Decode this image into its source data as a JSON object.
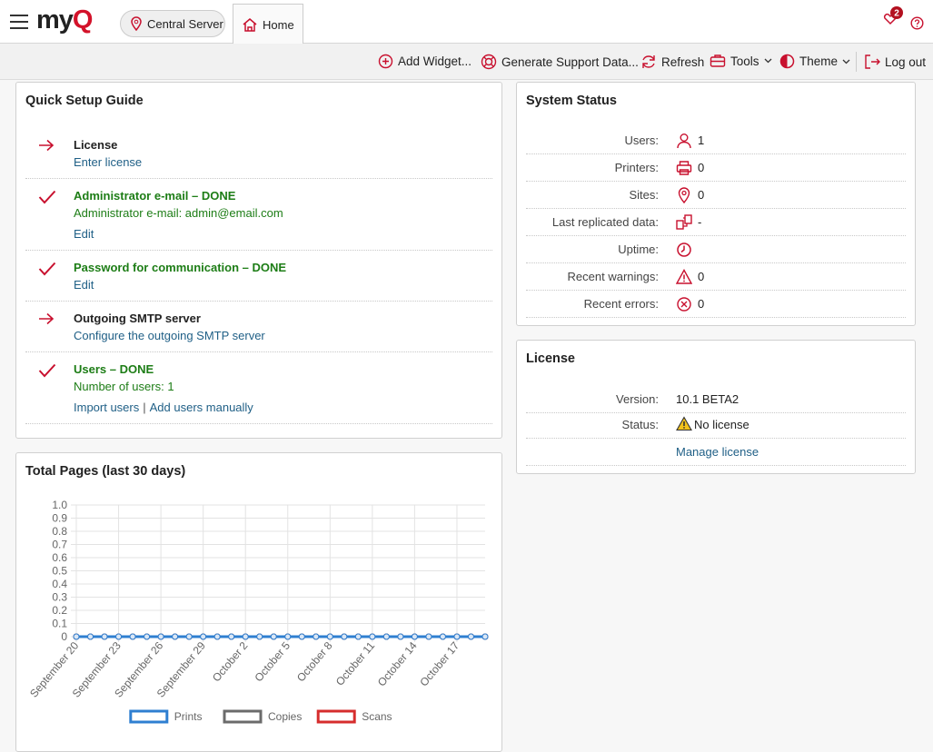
{
  "header": {
    "logo": {
      "text": "my",
      "accent": "Q"
    },
    "server": "Central Server",
    "tab": "Home",
    "notifications": 2
  },
  "toolbar": {
    "items": [
      "Add Widget...",
      "Generate Support Data...",
      "Refresh",
      "Tools",
      "Theme",
      "Log out"
    ]
  },
  "quick_setup": {
    "title": "Quick Setup Guide",
    "items": [
      {
        "title": "License",
        "done": false,
        "links": [
          "Enter license"
        ]
      },
      {
        "title": "Administrator e-mail – DONE",
        "done": true,
        "detail": "Administrator e-mail: admin@email.com",
        "links": [
          "Edit"
        ]
      },
      {
        "title": "Password for communication – DONE",
        "done": true,
        "links": [
          "Edit"
        ]
      },
      {
        "title": "Outgoing SMTP server",
        "done": false,
        "links": [
          "Configure the outgoing SMTP server"
        ]
      },
      {
        "title": "Users – DONE",
        "done": true,
        "detail": "Number of users: 1",
        "links": [
          "Import users",
          "Add users manually"
        ],
        "separator": "|"
      }
    ]
  },
  "system_status": {
    "title": "System Status",
    "rows": [
      {
        "label": "Users:",
        "value": 1
      },
      {
        "label": "Printers:",
        "value": 0
      },
      {
        "label": "Sites:",
        "value": 0
      },
      {
        "label": "Last replicated data:",
        "value": "-"
      },
      {
        "label": "Uptime:"
      },
      {
        "label": "Recent warnings:",
        "value": 0
      },
      {
        "label": "Recent errors:",
        "value": 0
      }
    ]
  },
  "license": {
    "title": "License",
    "rows": [
      {
        "label": "Version:",
        "value": "10.1 BETA2"
      },
      {
        "label": "Status:",
        "value": "No license"
      }
    ],
    "link": "Manage license"
  },
  "chart_data": {
    "type": "line",
    "title": "Total Pages (last 30 days)",
    "categories": [
      "September 20",
      null,
      null,
      "September 23",
      null,
      null,
      "September 26",
      null,
      null,
      "September 29",
      null,
      null,
      "October 2",
      null,
      null,
      "October 5",
      null,
      null,
      "October 8",
      null,
      null,
      "October 11",
      null,
      null,
      "October 14",
      null,
      null,
      "October 17",
      null,
      null
    ],
    "series": [
      {
        "name": "Prints",
        "color": "#2f7fd1",
        "values": [
          0,
          0,
          0,
          0,
          0,
          0,
          0,
          0,
          0,
          0,
          0,
          0,
          0,
          0,
          0,
          0,
          0,
          0,
          0,
          0,
          0,
          0,
          0,
          0,
          0,
          0,
          0,
          0,
          0,
          0
        ]
      },
      {
        "name": "Copies",
        "color": "#6b6b6b",
        "values": [
          0,
          0,
          0,
          0,
          0,
          0,
          0,
          0,
          0,
          0,
          0,
          0,
          0,
          0,
          0,
          0,
          0,
          0,
          0,
          0,
          0,
          0,
          0,
          0,
          0,
          0,
          0,
          0,
          0,
          0
        ]
      },
      {
        "name": "Scans",
        "color": "#d62d2d",
        "values": [
          0,
          0,
          0,
          0,
          0,
          0,
          0,
          0,
          0,
          0,
          0,
          0,
          0,
          0,
          0,
          0,
          0,
          0,
          0,
          0,
          0,
          0,
          0,
          0,
          0,
          0,
          0,
          0,
          0,
          0
        ]
      }
    ],
    "ylim": [
      0,
      1
    ],
    "yticks": [
      0,
      0.1,
      0.2,
      0.3,
      0.4,
      0.5,
      0.6,
      0.7,
      0.8,
      0.9,
      {
        "value": 1,
        "label": "1.0"
      }
    ],
    "grid": true,
    "legend": "bottom"
  }
}
